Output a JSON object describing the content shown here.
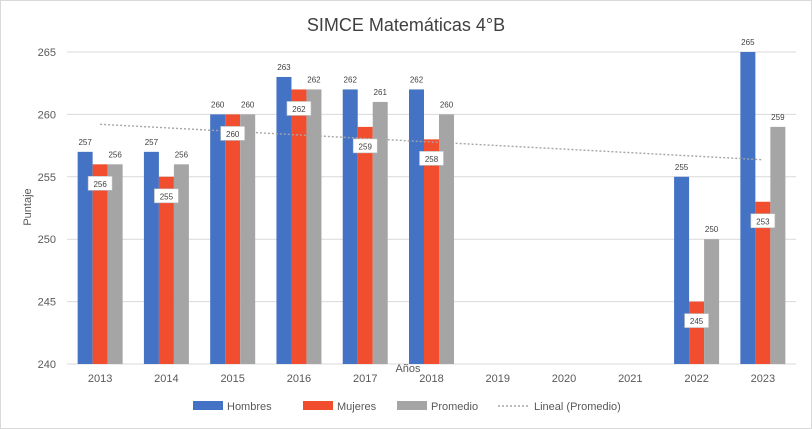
{
  "chart_data": {
    "type": "bar",
    "title": "SIMCE Matemáticas 4°B",
    "xlabel": "Años",
    "ylabel": "Puntaje",
    "ylim": [
      240,
      265
    ],
    "yticks": [
      240,
      245,
      250,
      255,
      260,
      265
    ],
    "grid": true,
    "legend_position": "bottom",
    "categories": [
      "2013",
      "2014",
      "2015",
      "2016",
      "2017",
      "2018",
      "2019",
      "2020",
      "2021",
      "2022",
      "2023"
    ],
    "series": [
      {
        "name": "Hombres",
        "color": "#4472c4",
        "values": [
          257,
          257,
          260,
          263,
          262,
          262,
          null,
          null,
          null,
          255,
          265
        ]
      },
      {
        "name": "Mujeres",
        "color": "#f04e2f",
        "values": [
          256,
          255,
          260,
          262,
          259,
          258,
          null,
          null,
          null,
          245,
          253
        ]
      },
      {
        "name": "Promedio",
        "color": "#a5a5a5",
        "values": [
          256,
          256,
          260,
          262,
          261,
          260,
          null,
          null,
          null,
          250,
          259
        ]
      }
    ],
    "trendline": {
      "name": "Lineal (Promedio)",
      "type": "linear",
      "of": "Promedio",
      "color": "#a5a5a5"
    }
  }
}
